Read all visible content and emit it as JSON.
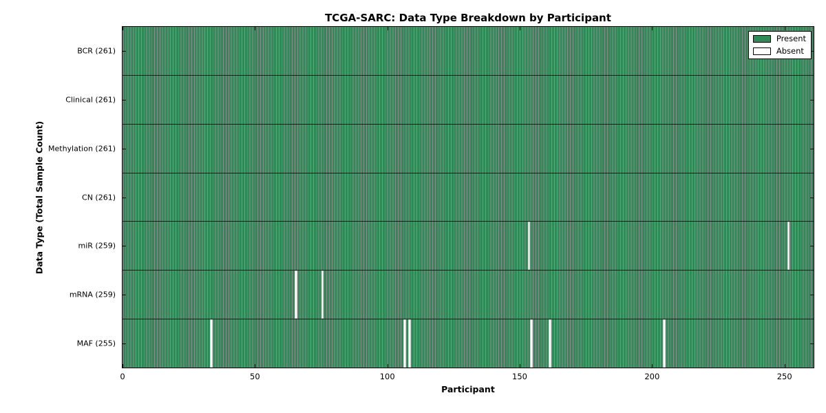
{
  "chart_data": {
    "type": "heatmap",
    "title": "TCGA-SARC: Data Type Breakdown by Participant",
    "xlabel": "Participant",
    "ylabel": "Data Type (Total Sample Count)",
    "n_participants": 261,
    "x_ticks": [
      0,
      50,
      100,
      150,
      200,
      250
    ],
    "xlim": [
      0,
      261
    ],
    "grid": false,
    "legend_position": "upper right",
    "rows": [
      {
        "label": "BCR (261)",
        "data_type": "BCR",
        "present_count": 261,
        "absent_participants": []
      },
      {
        "label": "Clinical (261)",
        "data_type": "Clinical",
        "present_count": 261,
        "absent_participants": []
      },
      {
        "label": "Methylation (261)",
        "data_type": "Methylation",
        "present_count": 261,
        "absent_participants": []
      },
      {
        "label": "CN (261)",
        "data_type": "CN",
        "present_count": 261,
        "absent_participants": []
      },
      {
        "label": "miR (259)",
        "data_type": "miR",
        "present_count": 259,
        "absent_participants": [
          153,
          251
        ]
      },
      {
        "label": "mRNA (259)",
        "data_type": "mRNA",
        "present_count": 259,
        "absent_participants": [
          65,
          75
        ]
      },
      {
        "label": "MAF (255)",
        "data_type": "MAF",
        "present_count": 255,
        "absent_participants": [
          33,
          106,
          108,
          154,
          161,
          204
        ]
      }
    ],
    "legend": [
      {
        "label": "Present",
        "color": "#2e8b57"
      },
      {
        "label": "Absent",
        "color": "#ffffff"
      }
    ],
    "colors": {
      "present_fill": "#2e8b57",
      "bar_edge": "rgba(0,0,0,0.45)",
      "absent_fill": "#ffffff",
      "axis": "#000000"
    }
  }
}
